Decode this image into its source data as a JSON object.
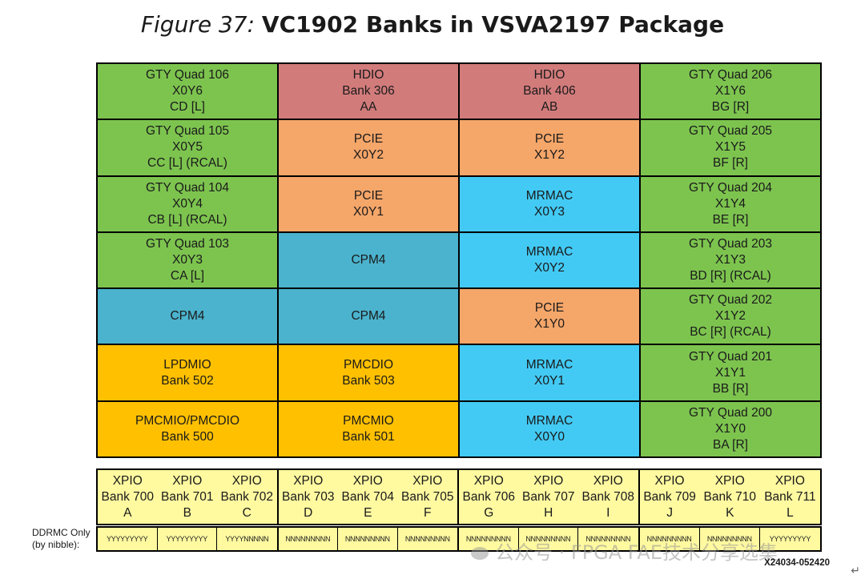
{
  "title": {
    "prefix": "Figure 37:",
    "main": "VC1902 Banks in VSVA2197 Package"
  },
  "colors": {
    "gty": "#7dc44f",
    "hdio": "#d27b7b",
    "pcie": "#f5a669",
    "mrmac": "#42caf4",
    "cpm": "#4bb3cd",
    "pmc": "#ffc000",
    "xpio": "#fff9a0"
  },
  "grid": [
    [
      {
        "kind": "gty",
        "lines": [
          "GTY Quad 106",
          "X0Y6",
          "CD [L]"
        ]
      },
      {
        "kind": "hdio",
        "lines": [
          "HDIO",
          "Bank 306",
          "AA"
        ]
      },
      {
        "kind": "hdio",
        "lines": [
          "HDIO",
          "Bank 406",
          "AB"
        ]
      },
      {
        "kind": "gty",
        "lines": [
          "GTY Quad 206",
          "X1Y6",
          "BG [R]"
        ]
      }
    ],
    [
      {
        "kind": "gty",
        "lines": [
          "GTY Quad 105",
          "X0Y5",
          "CC [L] (RCAL)"
        ]
      },
      {
        "kind": "pcie",
        "lines": [
          "PCIE",
          "X0Y2"
        ]
      },
      {
        "kind": "pcie",
        "lines": [
          "PCIE",
          "X1Y2"
        ]
      },
      {
        "kind": "gty",
        "lines": [
          "GTY Quad 205",
          "X1Y5",
          "BF [R]"
        ]
      }
    ],
    [
      {
        "kind": "gty",
        "lines": [
          "GTY Quad 104",
          "X0Y4",
          "CB [L] (RCAL)"
        ]
      },
      {
        "kind": "pcie",
        "lines": [
          "PCIE",
          "X0Y1"
        ]
      },
      {
        "kind": "mrmac",
        "lines": [
          "MRMAC",
          "X0Y3"
        ]
      },
      {
        "kind": "gty",
        "lines": [
          "GTY Quad 204",
          "X1Y4",
          "BE [R]"
        ]
      }
    ],
    [
      {
        "kind": "gty",
        "lines": [
          "GTY Quad 103",
          "X0Y3",
          "CA [L]"
        ]
      },
      {
        "kind": "cpm",
        "lines": [
          "CPM4"
        ]
      },
      {
        "kind": "mrmac",
        "lines": [
          "MRMAC",
          "X0Y2"
        ]
      },
      {
        "kind": "gty",
        "lines": [
          "GTY Quad 203",
          "X1Y3",
          "BD [R] (RCAL)"
        ]
      }
    ],
    [
      {
        "kind": "cpm",
        "lines": [
          "CPM4"
        ]
      },
      {
        "kind": "cpm",
        "lines": [
          "CPM4"
        ]
      },
      {
        "kind": "pcie",
        "lines": [
          "PCIE",
          "X1Y0"
        ]
      },
      {
        "kind": "gty",
        "lines": [
          "GTY Quad 202",
          "X1Y2",
          "BC [R] (RCAL)"
        ]
      }
    ],
    [
      {
        "kind": "pmc",
        "lines": [
          "LPDMIO",
          "Bank 502"
        ]
      },
      {
        "kind": "pmc",
        "lines": [
          "PMCDIO",
          "Bank 503"
        ]
      },
      {
        "kind": "mrmac",
        "lines": [
          "MRMAC",
          "X0Y1"
        ]
      },
      {
        "kind": "gty",
        "lines": [
          "GTY Quad 201",
          "X1Y1",
          "BB [R]"
        ]
      }
    ],
    [
      {
        "kind": "pmc",
        "lines": [
          "PMCMIO/PMCDIO",
          "Bank 500"
        ]
      },
      {
        "kind": "pmc",
        "lines": [
          "PMCMIO",
          "Bank 501"
        ]
      },
      {
        "kind": "mrmac",
        "lines": [
          "MRMAC",
          "X0Y0"
        ]
      },
      {
        "kind": "gty",
        "lines": [
          "GTY Quad 200",
          "X1Y0",
          "BA [R]"
        ]
      }
    ]
  ],
  "xpio": [
    {
      "name": "XPIO",
      "bank": "Bank 700",
      "letter": "A"
    },
    {
      "name": "XPIO",
      "bank": "Bank 701",
      "letter": "B"
    },
    {
      "name": "XPIO",
      "bank": "Bank 702",
      "letter": "C"
    },
    {
      "name": "XPIO",
      "bank": "Bank 703",
      "letter": "D"
    },
    {
      "name": "XPIO",
      "bank": "Bank 704",
      "letter": "E"
    },
    {
      "name": "XPIO",
      "bank": "Bank 705",
      "letter": "F"
    },
    {
      "name": "XPIO",
      "bank": "Bank 706",
      "letter": "G"
    },
    {
      "name": "XPIO",
      "bank": "Bank 707",
      "letter": "H"
    },
    {
      "name": "XPIO",
      "bank": "Bank 708",
      "letter": "I"
    },
    {
      "name": "XPIO",
      "bank": "Bank 709",
      "letter": "J"
    },
    {
      "name": "XPIO",
      "bank": "Bank 710",
      "letter": "K"
    },
    {
      "name": "XPIO",
      "bank": "Bank 711",
      "letter": "L"
    }
  ],
  "ddrmc": {
    "label_line1": "DDRMC Only",
    "label_line2": "(by nibble):",
    "nibbles": [
      "YYYYYYYYY",
      "YYYYYYYYY",
      "YYYYNNNNN",
      "NNNNNNNNN",
      "NNNNNNNNN",
      "NNNNNNNNN",
      "NNNNNNNNN",
      "NNNNNNNNN",
      "NNNNNNNNN",
      "NNNNNNNNN",
      "NNNNNNNNN",
      "YYYYYYYYY"
    ]
  },
  "watermark": "公众号 · FPGA FAE技术分享选集",
  "doc_id": "X24034-052420",
  "return_mark": "↵"
}
